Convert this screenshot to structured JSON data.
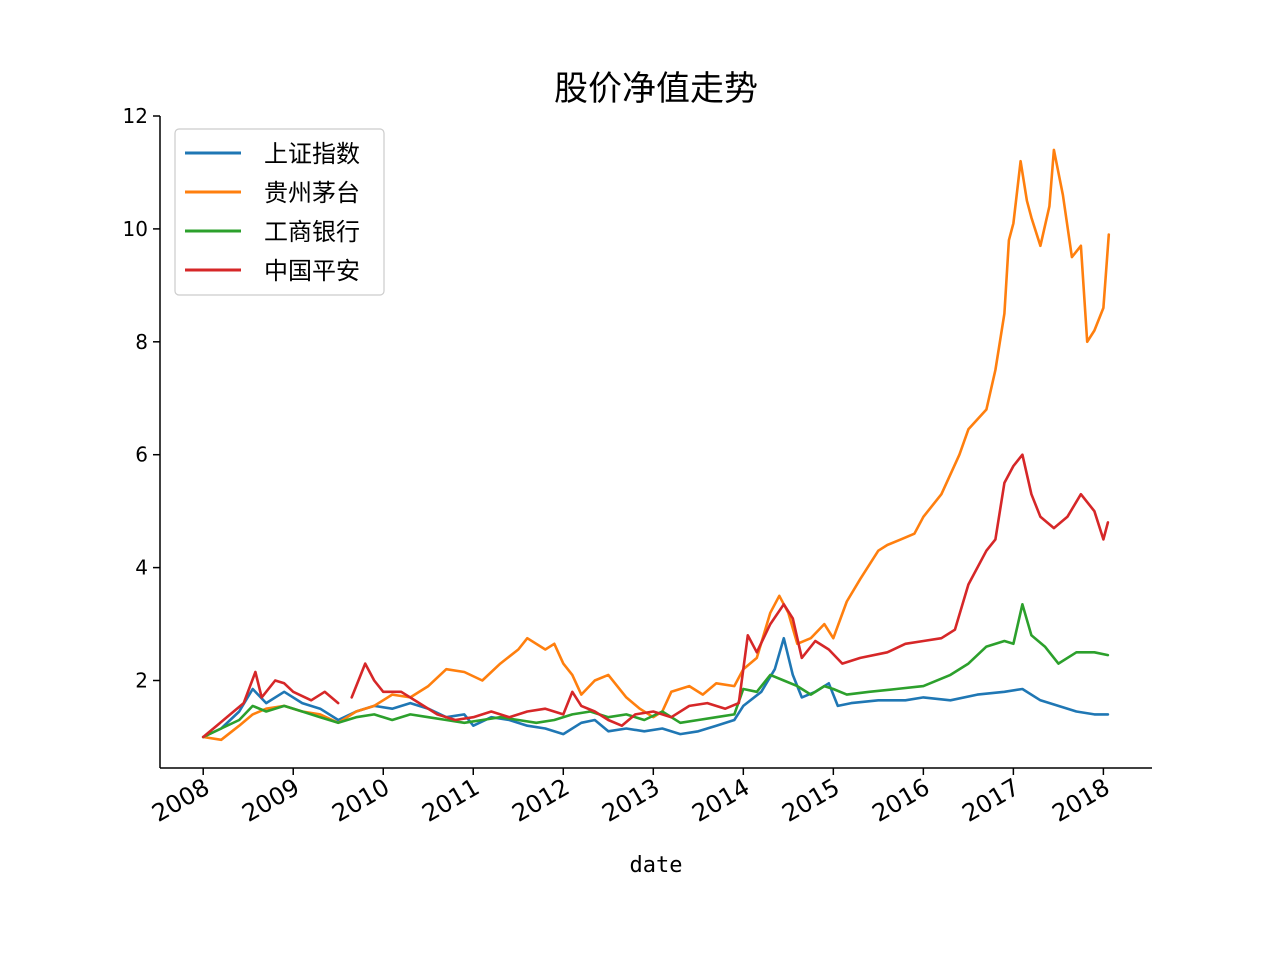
{
  "chart_data": {
    "type": "line",
    "title": "股价净值走势",
    "xlabel": "date",
    "ylabel": "",
    "x_ticks": [
      "2008",
      "2009",
      "2010",
      "2011",
      "2012",
      "2013",
      "2014",
      "2015",
      "2016",
      "2017",
      "2018"
    ],
    "y_ticks": [
      2,
      4,
      6,
      8,
      10,
      12
    ],
    "xlim": [
      2007.52,
      2018.54
    ],
    "ylim": [
      0.45,
      12.0
    ],
    "grid": false,
    "legend_position": "top-left",
    "series": [
      {
        "name": "上证指数",
        "color": "#1f77b4",
        "points": [
          [
            2008.0,
            1.0
          ],
          [
            2008.2,
            1.15
          ],
          [
            2008.4,
            1.45
          ],
          [
            2008.55,
            1.85
          ],
          [
            2008.7,
            1.6
          ],
          [
            2008.9,
            1.8
          ],
          [
            2009.1,
            1.6
          ],
          [
            2009.3,
            1.5
          ],
          [
            2009.5,
            1.3
          ],
          [
            2009.7,
            1.45
          ],
          [
            2009.9,
            1.55
          ],
          [
            2010.1,
            1.5
          ],
          [
            2010.3,
            1.6
          ],
          [
            2010.5,
            1.5
          ],
          [
            2010.7,
            1.35
          ],
          [
            2010.9,
            1.4
          ],
          [
            2011.0,
            1.2
          ],
          [
            2011.2,
            1.35
          ],
          [
            2011.4,
            1.3
          ],
          [
            2011.6,
            1.2
          ],
          [
            2011.8,
            1.15
          ],
          [
            2012.0,
            1.05
          ],
          [
            2012.2,
            1.25
          ],
          [
            2012.35,
            1.3
          ],
          [
            2012.5,
            1.1
          ],
          [
            2012.7,
            1.15
          ],
          [
            2012.9,
            1.1
          ],
          [
            2013.1,
            1.15
          ],
          [
            2013.3,
            1.05
          ],
          [
            2013.5,
            1.1
          ],
          [
            2013.7,
            1.2
          ],
          [
            2013.9,
            1.3
          ],
          [
            2014.0,
            1.55
          ],
          [
            2014.2,
            1.8
          ],
          [
            2014.35,
            2.2
          ],
          [
            2014.45,
            2.75
          ],
          [
            2014.55,
            2.1
          ],
          [
            2014.65,
            1.7
          ],
          [
            2014.8,
            1.8
          ],
          [
            2014.95,
            1.95
          ],
          [
            2015.05,
            1.55
          ],
          [
            2015.2,
            1.6
          ],
          [
            2015.5,
            1.65
          ],
          [
            2015.8,
            1.65
          ],
          [
            2016.0,
            1.7
          ],
          [
            2016.3,
            1.65
          ],
          [
            2016.6,
            1.75
          ],
          [
            2016.9,
            1.8
          ],
          [
            2017.1,
            1.85
          ],
          [
            2017.3,
            1.65
          ],
          [
            2017.5,
            1.55
          ],
          [
            2017.7,
            1.45
          ],
          [
            2017.9,
            1.4
          ],
          [
            2018.05,
            1.4
          ]
        ]
      },
      {
        "name": "贵州茅台",
        "color": "#ff7f0e",
        "points": [
          [
            2008.0,
            1.0
          ],
          [
            2008.2,
            0.95
          ],
          [
            2008.4,
            1.2
          ],
          [
            2008.55,
            1.4
          ],
          [
            2008.7,
            1.5
          ],
          [
            2008.9,
            1.55
          ],
          [
            2009.1,
            1.45
          ],
          [
            2009.3,
            1.4
          ],
          [
            2009.5,
            1.25
          ],
          [
            2009.7,
            1.45
          ],
          [
            2009.9,
            1.55
          ],
          [
            2010.1,
            1.75
          ],
          [
            2010.3,
            1.7
          ],
          [
            2010.5,
            1.9
          ],
          [
            2010.7,
            2.2
          ],
          [
            2010.9,
            2.15
          ],
          [
            2011.1,
            2.0
          ],
          [
            2011.3,
            2.3
          ],
          [
            2011.5,
            2.55
          ],
          [
            2011.6,
            2.75
          ],
          [
            2011.8,
            2.55
          ],
          [
            2011.9,
            2.65
          ],
          [
            2012.0,
            2.3
          ],
          [
            2012.1,
            2.1
          ],
          [
            2012.2,
            1.75
          ],
          [
            2012.35,
            2.0
          ],
          [
            2012.5,
            2.1
          ],
          [
            2012.7,
            1.7
          ],
          [
            2012.85,
            1.5
          ],
          [
            2013.0,
            1.35
          ],
          [
            2013.1,
            1.45
          ],
          [
            2013.2,
            1.8
          ],
          [
            2013.4,
            1.9
          ],
          [
            2013.55,
            1.75
          ],
          [
            2013.7,
            1.95
          ],
          [
            2013.9,
            1.9
          ],
          [
            2014.0,
            2.2
          ],
          [
            2014.15,
            2.4
          ],
          [
            2014.3,
            3.2
          ],
          [
            2014.4,
            3.5
          ],
          [
            2014.5,
            3.2
          ],
          [
            2014.6,
            2.65
          ],
          [
            2014.75,
            2.75
          ],
          [
            2014.9,
            3.0
          ],
          [
            2015.0,
            2.75
          ],
          [
            2015.15,
            3.4
          ],
          [
            2015.3,
            3.8
          ],
          [
            2015.5,
            4.3
          ],
          [
            2015.6,
            4.4
          ],
          [
            2015.75,
            4.5
          ],
          [
            2015.9,
            4.6
          ],
          [
            2016.0,
            4.9
          ],
          [
            2016.2,
            5.3
          ],
          [
            2016.4,
            6.0
          ],
          [
            2016.5,
            6.45
          ],
          [
            2016.7,
            6.8
          ],
          [
            2016.8,
            7.5
          ],
          [
            2016.9,
            8.5
          ],
          [
            2016.95,
            9.8
          ],
          [
            2017.0,
            10.1
          ],
          [
            2017.08,
            11.2
          ],
          [
            2017.15,
            10.5
          ],
          [
            2017.2,
            10.2
          ],
          [
            2017.3,
            9.7
          ],
          [
            2017.4,
            10.4
          ],
          [
            2017.45,
            11.4
          ],
          [
            2017.55,
            10.6
          ],
          [
            2017.65,
            9.5
          ],
          [
            2017.75,
            9.7
          ],
          [
            2017.82,
            8.0
          ],
          [
            2017.9,
            8.2
          ],
          [
            2018.0,
            8.6
          ],
          [
            2018.06,
            9.9
          ]
        ]
      },
      {
        "name": "工商银行",
        "color": "#2ca02c",
        "points": [
          [
            2008.0,
            1.0
          ],
          [
            2008.2,
            1.15
          ],
          [
            2008.4,
            1.3
          ],
          [
            2008.55,
            1.55
          ],
          [
            2008.7,
            1.45
          ],
          [
            2008.9,
            1.55
          ],
          [
            2009.1,
            1.45
          ],
          [
            2009.3,
            1.35
          ],
          [
            2009.5,
            1.25
          ],
          [
            2009.7,
            1.35
          ],
          [
            2009.9,
            1.4
          ],
          [
            2010.1,
            1.3
          ],
          [
            2010.3,
            1.4
          ],
          [
            2010.5,
            1.35
          ],
          [
            2010.7,
            1.3
          ],
          [
            2010.9,
            1.25
          ],
          [
            2011.1,
            1.3
          ],
          [
            2011.3,
            1.35
          ],
          [
            2011.5,
            1.3
          ],
          [
            2011.7,
            1.25
          ],
          [
            2011.9,
            1.3
          ],
          [
            2012.1,
            1.4
          ],
          [
            2012.3,
            1.45
          ],
          [
            2012.5,
            1.35
          ],
          [
            2012.7,
            1.4
          ],
          [
            2012.9,
            1.3
          ],
          [
            2013.1,
            1.45
          ],
          [
            2013.3,
            1.25
          ],
          [
            2013.5,
            1.3
          ],
          [
            2013.7,
            1.35
          ],
          [
            2013.9,
            1.4
          ],
          [
            2014.0,
            1.85
          ],
          [
            2014.15,
            1.8
          ],
          [
            2014.3,
            2.1
          ],
          [
            2014.45,
            2.0
          ],
          [
            2014.6,
            1.9
          ],
          [
            2014.75,
            1.75
          ],
          [
            2014.9,
            1.9
          ],
          [
            2015.0,
            1.85
          ],
          [
            2015.15,
            1.75
          ],
          [
            2015.4,
            1.8
          ],
          [
            2015.7,
            1.85
          ],
          [
            2016.0,
            1.9
          ],
          [
            2016.3,
            2.1
          ],
          [
            2016.5,
            2.3
          ],
          [
            2016.7,
            2.6
          ],
          [
            2016.9,
            2.7
          ],
          [
            2017.0,
            2.65
          ],
          [
            2017.1,
            3.35
          ],
          [
            2017.2,
            2.8
          ],
          [
            2017.35,
            2.6
          ],
          [
            2017.5,
            2.3
          ],
          [
            2017.7,
            2.5
          ],
          [
            2017.9,
            2.5
          ],
          [
            2018.05,
            2.45
          ]
        ]
      },
      {
        "name": "中国平安",
        "color": "#d62728",
        "points": [
          [
            2008.0,
            1.0
          ],
          [
            2008.15,
            1.2
          ],
          [
            2008.3,
            1.4
          ],
          [
            2008.45,
            1.6
          ],
          [
            2008.58,
            2.15
          ],
          [
            2008.65,
            1.7
          ],
          [
            2008.8,
            2.0
          ],
          [
            2008.9,
            1.95
          ],
          [
            2009.0,
            1.8
          ],
          [
            2009.2,
            1.65
          ],
          [
            2009.35,
            1.8
          ],
          [
            2009.5,
            1.6
          ],
          [
            2009.6,
            null
          ],
          [
            2009.65,
            1.7
          ],
          [
            2009.8,
            2.3
          ],
          [
            2009.9,
            2.0
          ],
          [
            2010.0,
            1.8
          ],
          [
            2010.2,
            1.8
          ],
          [
            2010.4,
            1.6
          ],
          [
            2010.6,
            1.4
          ],
          [
            2010.8,
            1.3
          ],
          [
            2011.0,
            1.35
          ],
          [
            2011.2,
            1.45
          ],
          [
            2011.4,
            1.35
          ],
          [
            2011.6,
            1.45
          ],
          [
            2011.8,
            1.5
          ],
          [
            2012.0,
            1.4
          ],
          [
            2012.1,
            1.8
          ],
          [
            2012.2,
            1.55
          ],
          [
            2012.35,
            1.45
          ],
          [
            2012.5,
            1.3
          ],
          [
            2012.65,
            1.2
          ],
          [
            2012.8,
            1.4
          ],
          [
            2013.0,
            1.45
          ],
          [
            2013.2,
            1.35
          ],
          [
            2013.4,
            1.55
          ],
          [
            2013.6,
            1.6
          ],
          [
            2013.8,
            1.5
          ],
          [
            2013.95,
            1.6
          ],
          [
            2014.05,
            2.8
          ],
          [
            2014.15,
            2.5
          ],
          [
            2014.3,
            3.0
          ],
          [
            2014.45,
            3.35
          ],
          [
            2014.55,
            3.1
          ],
          [
            2014.65,
            2.4
          ],
          [
            2014.8,
            2.7
          ],
          [
            2014.95,
            2.55
          ],
          [
            2015.1,
            2.3
          ],
          [
            2015.3,
            2.4
          ],
          [
            2015.6,
            2.5
          ],
          [
            2015.8,
            2.65
          ],
          [
            2016.0,
            2.7
          ],
          [
            2016.2,
            2.75
          ],
          [
            2016.35,
            2.9
          ],
          [
            2016.5,
            3.7
          ],
          [
            2016.7,
            4.3
          ],
          [
            2016.8,
            4.5
          ],
          [
            2016.9,
            5.5
          ],
          [
            2017.0,
            5.8
          ],
          [
            2017.1,
            6.0
          ],
          [
            2017.2,
            5.3
          ],
          [
            2017.3,
            4.9
          ],
          [
            2017.45,
            4.7
          ],
          [
            2017.6,
            4.9
          ],
          [
            2017.75,
            5.3
          ],
          [
            2017.9,
            5.0
          ],
          [
            2018.0,
            4.5
          ],
          [
            2018.05,
            4.8
          ]
        ]
      }
    ]
  }
}
